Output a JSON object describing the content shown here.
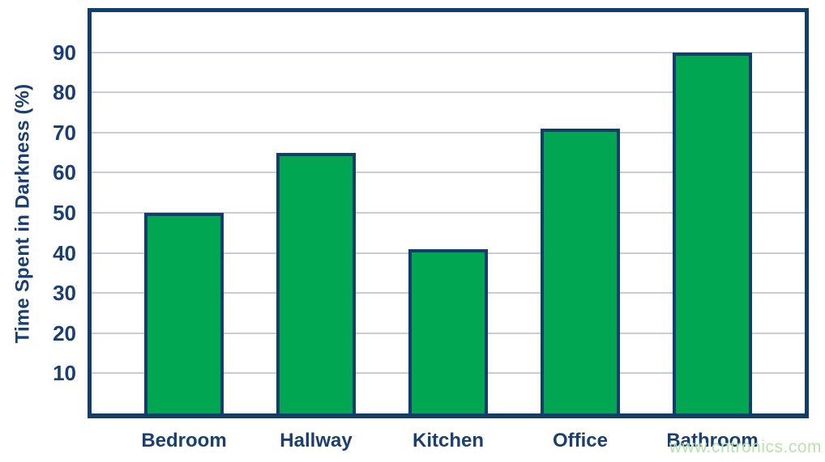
{
  "chart_data": {
    "type": "bar",
    "categories": [
      "Bedroom",
      "Hallway",
      "Kitchen",
      "Office",
      "Bathroom"
    ],
    "values": [
      50,
      65,
      41,
      71,
      90
    ],
    "title": "",
    "xlabel": "",
    "ylabel": "Time Spent in Darkness (%)",
    "ylim": [
      0,
      100
    ],
    "yticks": [
      10,
      20,
      30,
      40,
      50,
      60,
      70,
      80,
      90
    ],
    "grid": true,
    "legend": "none",
    "bar_color": "#00a651",
    "bar_border_color": "#123e6b",
    "axis_color": "#123e6b",
    "label_color": "#1b3f70",
    "gridline_color": "#c9cbd9"
  },
  "watermark": {
    "text": "www.cntronics.com",
    "color": "#b9e2ae"
  }
}
